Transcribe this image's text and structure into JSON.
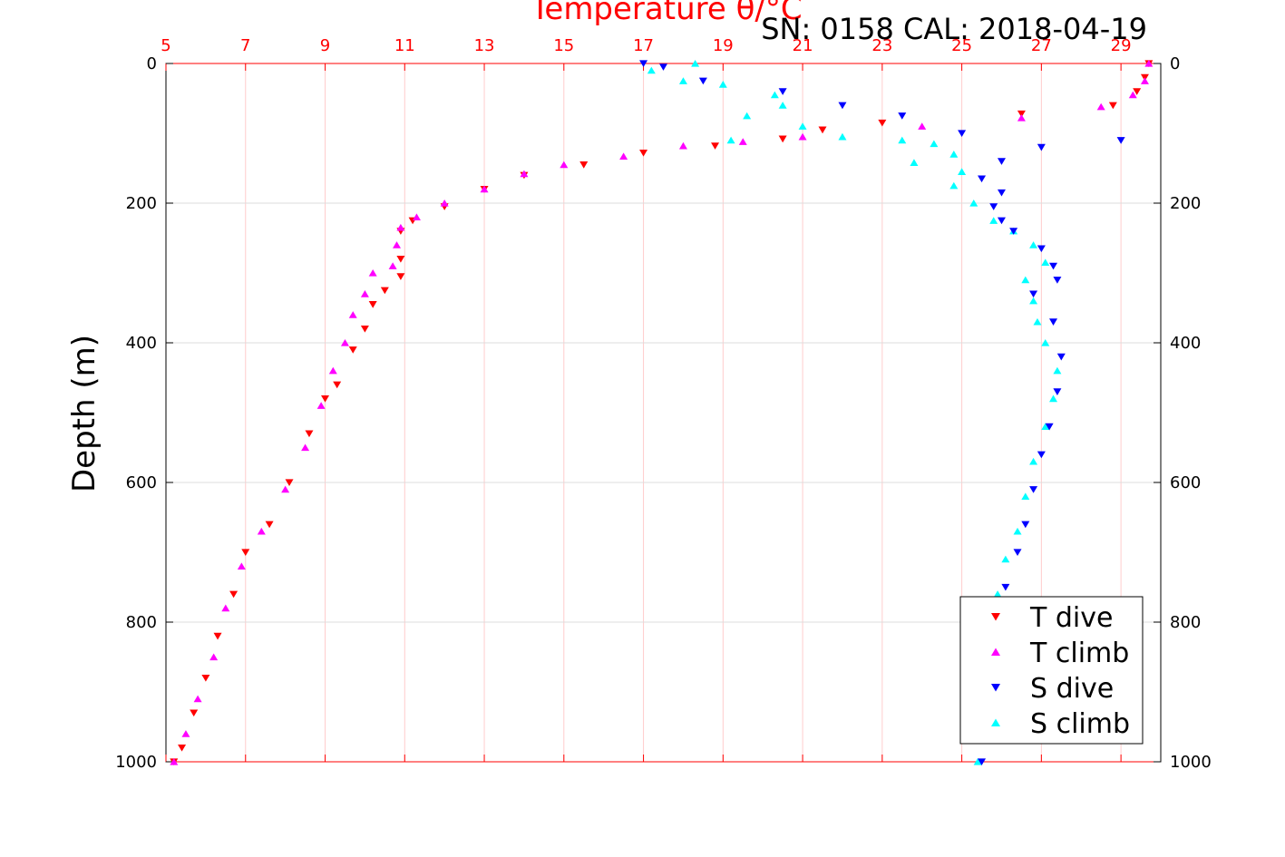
{
  "chart_data": {
    "type": "scatter",
    "title": "Temperature θ/°C",
    "annotation": "SN: 0158  CAL: 2018-04-19",
    "ylabel": "Depth (m)",
    "x_ticks": [
      5,
      7,
      9,
      11,
      13,
      15,
      17,
      19,
      21,
      23,
      25,
      27,
      29
    ],
    "y_ticks": [
      0,
      200,
      400,
      600,
      800,
      1000
    ],
    "xlim": [
      5,
      30
    ],
    "ylim": [
      0,
      1000
    ],
    "y_reversed": true,
    "grid": true,
    "legend_position": "bottom-right",
    "series": [
      {
        "name": "T dive",
        "color": "#ff0000",
        "marker": "triangle-down",
        "points": [
          [
            29.7,
            0
          ],
          [
            29.6,
            20
          ],
          [
            29.4,
            40
          ],
          [
            28.8,
            60
          ],
          [
            26.5,
            72
          ],
          [
            23.0,
            85
          ],
          [
            21.5,
            95
          ],
          [
            20.5,
            108
          ],
          [
            18.8,
            118
          ],
          [
            17.0,
            128
          ],
          [
            15.5,
            145
          ],
          [
            14.0,
            160
          ],
          [
            13.0,
            180
          ],
          [
            12.0,
            205
          ],
          [
            11.2,
            225
          ],
          [
            10.9,
            240
          ],
          [
            10.9,
            280
          ],
          [
            10.9,
            305
          ],
          [
            10.5,
            325
          ],
          [
            10.2,
            345
          ],
          [
            10.0,
            380
          ],
          [
            9.7,
            410
          ],
          [
            9.3,
            460
          ],
          [
            9.0,
            480
          ],
          [
            8.6,
            530
          ],
          [
            8.1,
            600
          ],
          [
            7.6,
            660
          ],
          [
            7.0,
            700
          ],
          [
            6.7,
            760
          ],
          [
            6.3,
            820
          ],
          [
            6.0,
            880
          ],
          [
            5.7,
            930
          ],
          [
            5.4,
            980
          ],
          [
            5.2,
            1000
          ]
        ]
      },
      {
        "name": "T climb",
        "color": "#ff00ff",
        "marker": "triangle-up",
        "points": [
          [
            29.7,
            0
          ],
          [
            29.6,
            25
          ],
          [
            29.3,
            45
          ],
          [
            28.5,
            62
          ],
          [
            26.5,
            78
          ],
          [
            24.0,
            90
          ],
          [
            21.0,
            105
          ],
          [
            19.5,
            112
          ],
          [
            18.0,
            118
          ],
          [
            16.5,
            133
          ],
          [
            15.0,
            145
          ],
          [
            14.0,
            158
          ],
          [
            13.0,
            180
          ],
          [
            12.0,
            200
          ],
          [
            11.3,
            220
          ],
          [
            10.9,
            235
          ],
          [
            10.8,
            260
          ],
          [
            10.7,
            290
          ],
          [
            10.2,
            300
          ],
          [
            10.0,
            330
          ],
          [
            9.7,
            360
          ],
          [
            9.5,
            400
          ],
          [
            9.2,
            440
          ],
          [
            8.9,
            490
          ],
          [
            8.5,
            550
          ],
          [
            8.0,
            610
          ],
          [
            7.4,
            670
          ],
          [
            6.9,
            720
          ],
          [
            6.5,
            780
          ],
          [
            6.2,
            850
          ],
          [
            5.8,
            910
          ],
          [
            5.5,
            960
          ],
          [
            5.2,
            1000
          ]
        ]
      },
      {
        "name": "S dive",
        "color": "#0000ff",
        "marker": "triangle-down",
        "points": [
          [
            17.0,
            0
          ],
          [
            17.5,
            5
          ],
          [
            18.5,
            25
          ],
          [
            20.5,
            40
          ],
          [
            22.0,
            60
          ],
          [
            23.5,
            75
          ],
          [
            25.0,
            100
          ],
          [
            27.0,
            120
          ],
          [
            29.0,
            110
          ],
          [
            26.0,
            140
          ],
          [
            25.5,
            165
          ],
          [
            26.0,
            185
          ],
          [
            25.8,
            205
          ],
          [
            26.0,
            225
          ],
          [
            26.3,
            240
          ],
          [
            27.0,
            265
          ],
          [
            27.3,
            290
          ],
          [
            27.4,
            310
          ],
          [
            26.8,
            330
          ],
          [
            27.3,
            370
          ],
          [
            27.5,
            420
          ],
          [
            27.4,
            470
          ],
          [
            27.2,
            520
          ],
          [
            27.0,
            560
          ],
          [
            26.8,
            610
          ],
          [
            26.6,
            660
          ],
          [
            26.4,
            700
          ],
          [
            26.1,
            750
          ],
          [
            25.8,
            800
          ],
          [
            25.6,
            880
          ],
          [
            25.5,
            950
          ],
          [
            25.5,
            1000
          ]
        ]
      },
      {
        "name": "S climb",
        "color": "#00ffff",
        "marker": "triangle-up",
        "points": [
          [
            18.3,
            0
          ],
          [
            17.2,
            10
          ],
          [
            18.0,
            25
          ],
          [
            19.0,
            30
          ],
          [
            20.3,
            45
          ],
          [
            20.5,
            60
          ],
          [
            19.6,
            75
          ],
          [
            21.0,
            90
          ],
          [
            19.2,
            110
          ],
          [
            22.0,
            105
          ],
          [
            23.5,
            110
          ],
          [
            24.3,
            115
          ],
          [
            24.8,
            130
          ],
          [
            23.8,
            142
          ],
          [
            25.0,
            155
          ],
          [
            24.8,
            175
          ],
          [
            25.3,
            200
          ],
          [
            25.8,
            225
          ],
          [
            26.3,
            240
          ],
          [
            26.8,
            260
          ],
          [
            27.1,
            285
          ],
          [
            26.6,
            310
          ],
          [
            26.8,
            340
          ],
          [
            26.9,
            370
          ],
          [
            27.1,
            400
          ],
          [
            27.4,
            440
          ],
          [
            27.3,
            480
          ],
          [
            27.1,
            520
          ],
          [
            26.8,
            570
          ],
          [
            26.6,
            620
          ],
          [
            26.4,
            670
          ],
          [
            26.1,
            710
          ],
          [
            25.9,
            760
          ],
          [
            25.6,
            820
          ],
          [
            25.5,
            900
          ],
          [
            25.4,
            1000
          ]
        ]
      }
    ]
  }
}
